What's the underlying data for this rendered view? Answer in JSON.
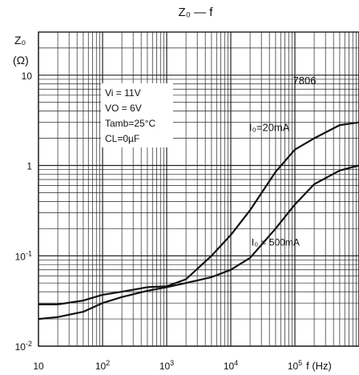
{
  "chart_data": {
    "type": "line",
    "title": "Z₀ — f",
    "ylabel_main": "Z₀",
    "ylabel_unit": "(Ω)",
    "xlabel": "f (Hz)",
    "x_scale": "log",
    "y_scale": "log",
    "xlim": [
      10,
      1000000
    ],
    "ylim": [
      0.01,
      30
    ],
    "x_ticks": [
      {
        "value": 10,
        "base": "10",
        "exp": ""
      },
      {
        "value": 100,
        "base": "10",
        "exp": "2"
      },
      {
        "value": 1000,
        "base": "10",
        "exp": "3"
      },
      {
        "value": 10000,
        "base": "10",
        "exp": "4"
      },
      {
        "value": 100000,
        "base": "10",
        "exp": "5"
      }
    ],
    "y_ticks": [
      {
        "value": 10,
        "base": "10",
        "exp": ""
      },
      {
        "value": 1,
        "base": "1",
        "exp": ""
      },
      {
        "value": 0.1,
        "base": "10",
        "exp": "-1"
      },
      {
        "value": 0.01,
        "base": "10",
        "exp": "-2"
      }
    ],
    "grid": true,
    "conditions": [
      "Vi = 11V",
      "VO = 6V",
      "Tamb=25°C",
      "CL=0µF"
    ],
    "device_label": "7806",
    "series": [
      {
        "name": "IO=20mA",
        "x": [
          10,
          20,
          50,
          100,
          200,
          500,
          1000,
          2000,
          5000,
          10000,
          20000,
          50000,
          100000,
          200000,
          500000,
          1000000
        ],
        "y": [
          0.029,
          0.029,
          0.032,
          0.037,
          0.04,
          0.045,
          0.046,
          0.055,
          0.1,
          0.17,
          0.32,
          0.85,
          1.5,
          2.0,
          2.8,
          3.0
        ]
      },
      {
        "name": "IO=500mA",
        "x": [
          10,
          20,
          50,
          100,
          200,
          500,
          1000,
          2000,
          5000,
          10000,
          20000,
          50000,
          100000,
          200000,
          500000,
          1000000
        ],
        "y": [
          0.02,
          0.021,
          0.024,
          0.03,
          0.035,
          0.041,
          0.045,
          0.05,
          0.058,
          0.07,
          0.095,
          0.2,
          0.37,
          0.62,
          0.88,
          1.0
        ]
      }
    ],
    "series_labels": {
      "io20": {
        "text": "I₀=20mA",
        "x": 40000,
        "y": 2.4
      },
      "io500": {
        "text": "I₀ = 500mA",
        "x": 50000,
        "y": 0.13
      }
    }
  }
}
